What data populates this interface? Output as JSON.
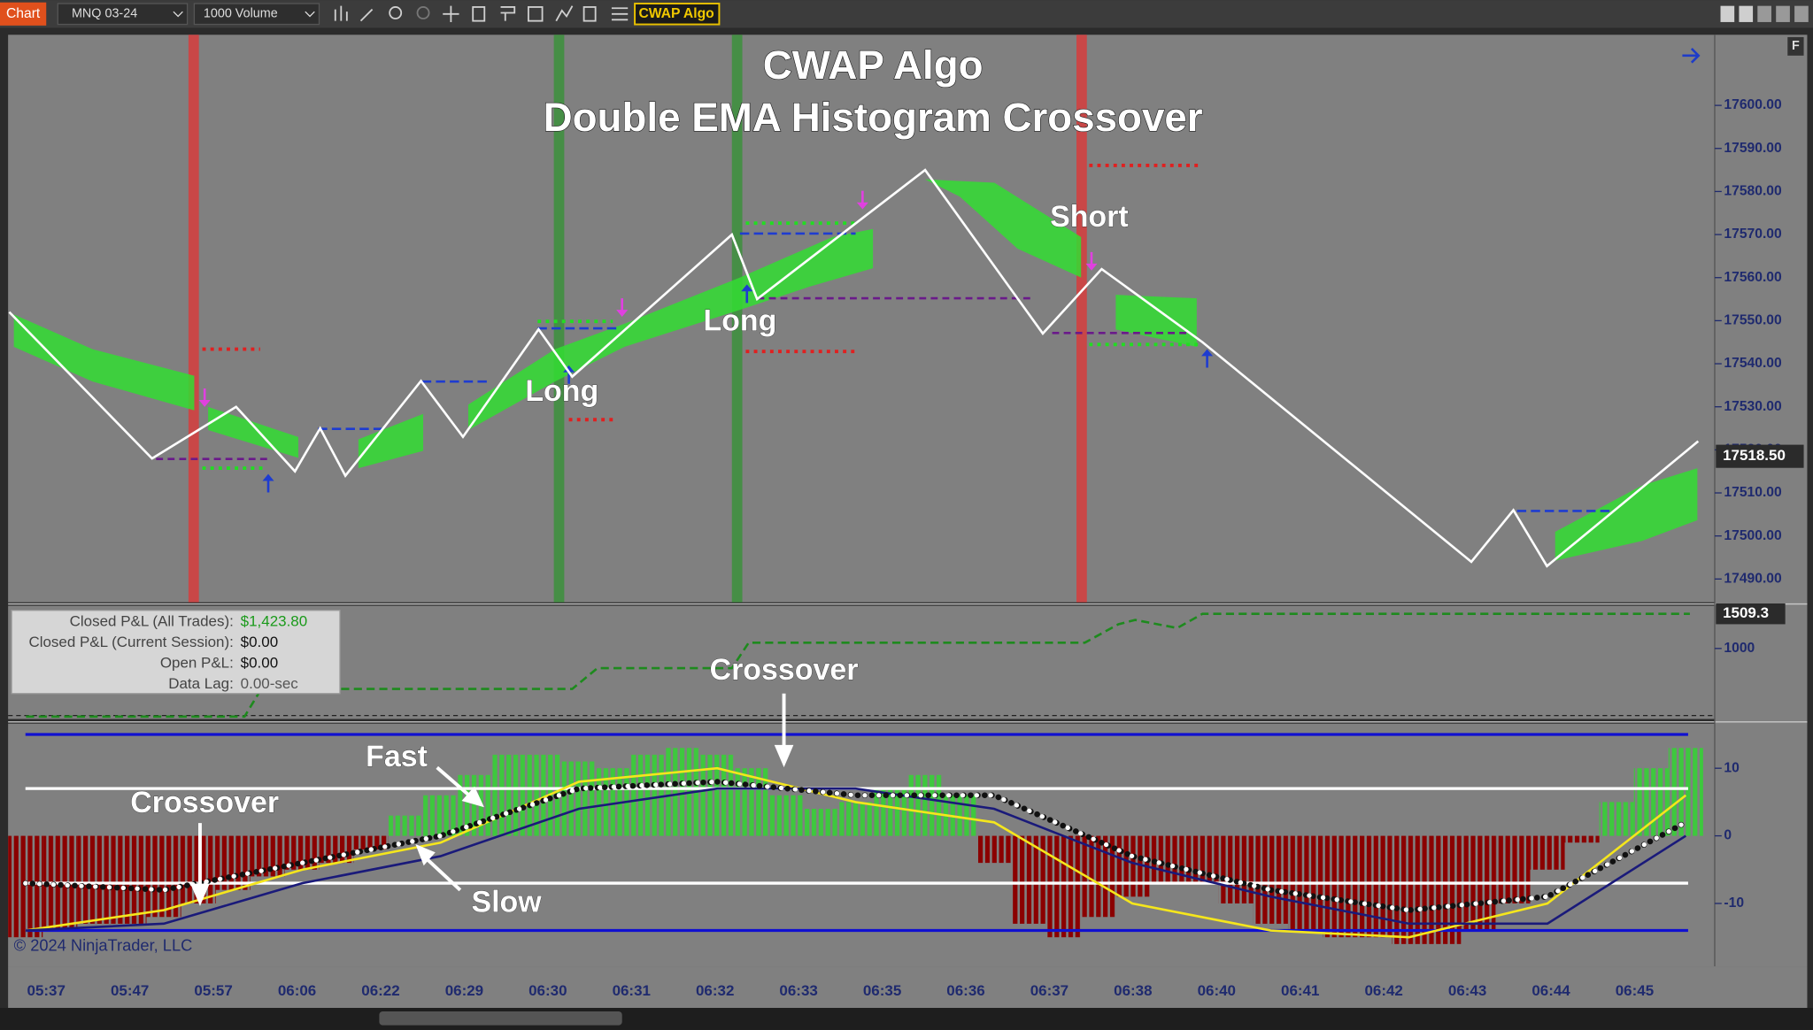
{
  "toolbar": {
    "chart_button": "Chart",
    "instrument": "MNQ 03-24",
    "interval": "1000 Volume",
    "strategy": "CWAP Algo",
    "panel_button": "F"
  },
  "title": {
    "line1": "CWAP Algo",
    "line2": "Double EMA Histogram Crossover"
  },
  "annotations": {
    "short": "Short",
    "long1": "Long",
    "long2": "Long",
    "crossover1": "Crossover",
    "crossover2": "Crossover",
    "fast": "Fast",
    "slow": "Slow"
  },
  "price_panel": {
    "ylim": [
      17484.6,
      17616.4
    ],
    "xlim": [
      0,
      202
    ],
    "yticks": [
      {
        "value": 17600,
        "label": "17600.00"
      },
      {
        "value": 17590,
        "label": "17590.00"
      },
      {
        "value": 17580,
        "label": "17580.00"
      },
      {
        "value": 17570,
        "label": "17570.00"
      },
      {
        "value": 17560,
        "label": "17560.00"
      },
      {
        "value": 17550,
        "label": "17550.00"
      },
      {
        "value": 17540,
        "label": "17540.00"
      },
      {
        "value": 17530,
        "label": "17530.00"
      },
      {
        "value": 17520,
        "label": "17520.00"
      },
      {
        "value": 17510,
        "label": "17510.00"
      },
      {
        "value": 17500,
        "label": "17500.00"
      },
      {
        "value": 17490,
        "label": "17490.00"
      }
    ],
    "last_price": {
      "value": 17518.5,
      "label": "17518.50"
    },
    "zigzag": {
      "color": "#ffffff",
      "x": [
        0,
        17,
        27,
        34,
        37,
        40,
        49,
        54,
        63,
        67,
        86,
        89,
        109,
        123,
        130,
        142,
        174,
        179,
        183,
        201
      ],
      "values": [
        17552,
        17518,
        17530,
        17515,
        17525,
        17514,
        17536,
        17523,
        17548,
        17537,
        17570,
        17555,
        17585,
        17547,
        17562,
        17545,
        17494,
        17506,
        17493,
        17522
      ]
    }
  },
  "pnl_panel": {
    "ylim": [
      -36,
      1628
    ],
    "yticks": [
      1000
    ],
    "last_value": 1509.3,
    "equity": {
      "color": "#1e8a1e",
      "x": [
        2,
        28,
        30,
        67,
        70,
        86,
        88,
        128,
        132,
        134,
        139,
        142,
        200
      ],
      "values": [
        0,
        0,
        405,
        405,
        711,
        711,
        1085,
        1085,
        1356,
        1420,
        1300,
        1509.3,
        1509.3
      ]
    },
    "stats": {
      "labels": [
        "Closed P&L (All Trades):",
        "Closed P&L (Current Session):",
        "Open P&L:",
        "Data Lag:"
      ],
      "values": [
        "$1,423.80",
        "$0.00",
        "$0.00",
        "0.00-sec"
      ]
    }
  },
  "indicator_panel": {
    "ylim": [
      -19.3,
      16.6
    ],
    "yticks": [
      10,
      0,
      -10
    ],
    "xlim": [
      0,
      48
    ],
    "positive_color": "#3ec83e",
    "negative_color": "#8b0000",
    "histogram": [
      -15,
      -14,
      -13,
      -13,
      -12,
      -10,
      -8,
      -6,
      -5,
      -4,
      -2,
      3,
      6,
      9,
      12,
      12,
      11,
      10,
      12,
      13,
      12,
      10,
      6,
      4,
      5,
      7,
      9,
      6,
      -4,
      -13,
      -15,
      -12,
      -9,
      -7,
      -7,
      -10,
      -13,
      -14,
      -15,
      -15,
      -16,
      -16,
      -14,
      -10,
      -5,
      -1,
      5,
      10,
      13
    ],
    "levels": [
      {
        "value": 15,
        "color": "#1010d0"
      },
      {
        "value": 7,
        "color": "#ffffff"
      },
      {
        "value": -7,
        "color": "#ffffff"
      },
      {
        "value": -14,
        "color": "#1010d0"
      }
    ],
    "lines": [
      {
        "name": "Fast",
        "color": "#f5e61c",
        "x": [
          0,
          4,
          8,
          12,
          16,
          20,
          24,
          28,
          32,
          36,
          40,
          44,
          48
        ],
        "values": [
          -14,
          -11,
          -5,
          -1,
          8,
          10,
          5,
          2,
          -10,
          -14,
          -15,
          -10,
          6
        ]
      },
      {
        "name": "Slow",
        "color": "#1a1a7a",
        "x": [
          0,
          4,
          8,
          12,
          16,
          20,
          24,
          28,
          32,
          36,
          40,
          44,
          48
        ],
        "values": [
          -14,
          -13,
          -7,
          -3,
          4,
          7,
          7,
          4,
          -4,
          -9,
          -13,
          -13,
          0
        ]
      },
      {
        "name": "Signal",
        "color": "#ffffff",
        "x": [
          0,
          4,
          8,
          12,
          16,
          20,
          24,
          28,
          32,
          36,
          40,
          44,
          48
        ],
        "values": [
          -7,
          -8,
          -4,
          0,
          7,
          8,
          6,
          6,
          -3,
          -8,
          -11,
          -9,
          2
        ]
      }
    ]
  },
  "copyright": "© 2024 NinjaTrader, LLC",
  "time_axis": {
    "labels": [
      "05:37",
      "05:47",
      "05:57",
      "06:06",
      "06:22",
      "06:29",
      "06:30",
      "06:31",
      "06:32",
      "06:33",
      "06:35",
      "06:36",
      "06:37",
      "06:38",
      "06:40",
      "06:41",
      "06:42",
      "06:43",
      "06:44",
      "06:45"
    ]
  }
}
